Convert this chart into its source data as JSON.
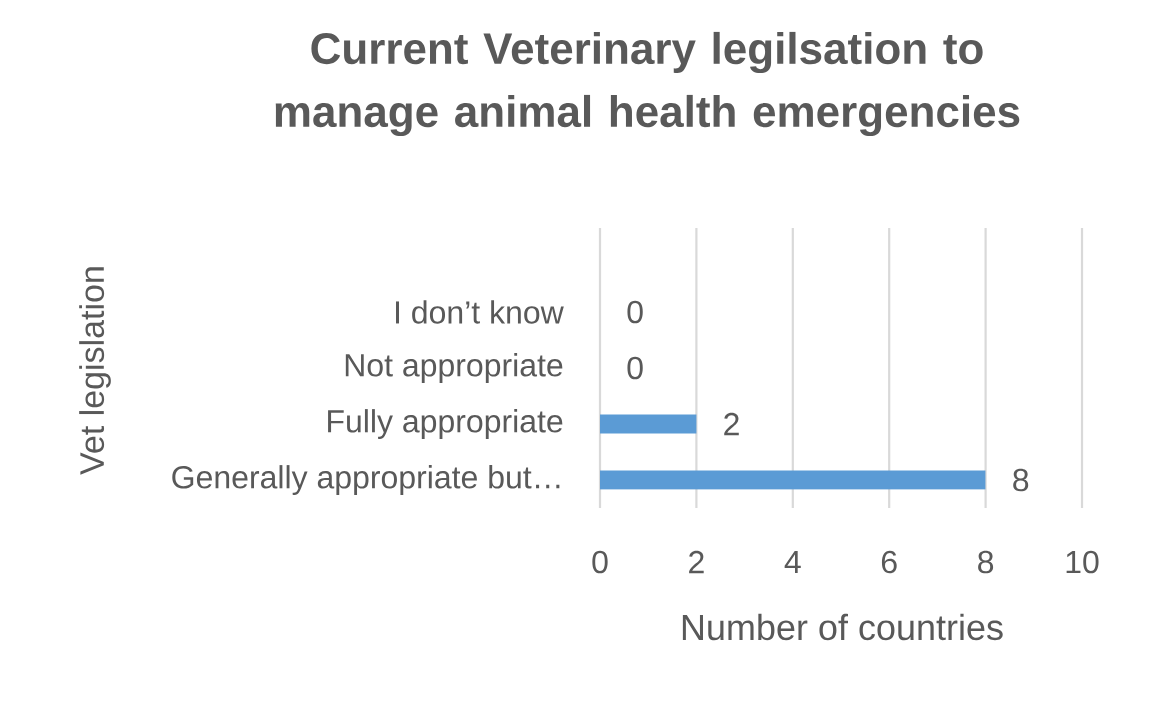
{
  "chart_data": {
    "type": "bar",
    "orientation": "horizontal",
    "title": "Current Veterinary legilsation to manage animal health emergencies",
    "xlabel": "Number of countries",
    "ylabel": "Vet legislation",
    "categories": [
      "I don’t know",
      "Not appropriate",
      "Fully appropriate",
      "Generally appropriate but…"
    ],
    "values": [
      0,
      0,
      2,
      8
    ],
    "color": "#5b9bd5",
    "xlim": [
      0,
      10
    ],
    "xticks": [
      0,
      2,
      4,
      6,
      8,
      10
    ],
    "grid": "x",
    "data_labels": true
  }
}
